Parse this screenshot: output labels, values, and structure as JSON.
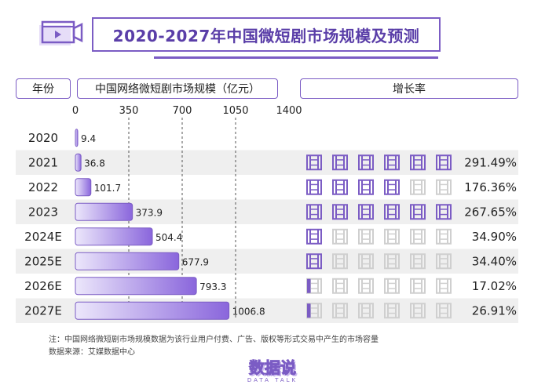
{
  "title": "2020-2027年中国微短剧市场规模及预测",
  "headers": {
    "year": "年份",
    "market": "中国网络微短剧市场规模（亿元）",
    "growth": "增长率"
  },
  "note": "注：中国网络微短剧市场规模数据为该行业用户付费、广告、版权等形式交易中产生的市场容量",
  "source": "数据来源：艾媒数据中心",
  "brand": {
    "name": "数据说",
    "sub": "DATA TALK"
  },
  "colors": {
    "accent": "#7b5cc4",
    "bar_light": "#ece7fb",
    "bar_dark": "#8a66dc",
    "row_band": "#efefef",
    "icon_filled": "#7b5cc4",
    "icon_empty": "#cfcfcf"
  },
  "icon_name": "film-strip-icon",
  "icons_per_row": 6,
  "chart_data": {
    "type": "bar",
    "orientation": "horizontal",
    "categories": [
      "2020",
      "2021",
      "2022",
      "2023",
      "2024E",
      "2025E",
      "2026E",
      "2027E"
    ],
    "values": [
      9.4,
      36.8,
      101.7,
      373.9,
      504.4,
      677.9,
      793.3,
      1006.8
    ],
    "value_labels": [
      "9.4",
      "36.8",
      "101.7",
      "373.9",
      "504.4",
      "677.9",
      "793.3",
      "1006.8"
    ],
    "xlim": [
      0,
      1400
    ],
    "xticks": [
      0,
      350,
      700,
      1050,
      1400
    ],
    "xtick_labels": [
      "0",
      "350",
      "700",
      "1050",
      "1400"
    ],
    "grid": true,
    "growth_labels": [
      "",
      "291.49%",
      "176.36%",
      "267.65%",
      "34.90%",
      "34.40%",
      "17.02%",
      "26.91%"
    ],
    "growth_icons": [
      0,
      6,
      4,
      6,
      1,
      1,
      0.5,
      0.5
    ]
  }
}
